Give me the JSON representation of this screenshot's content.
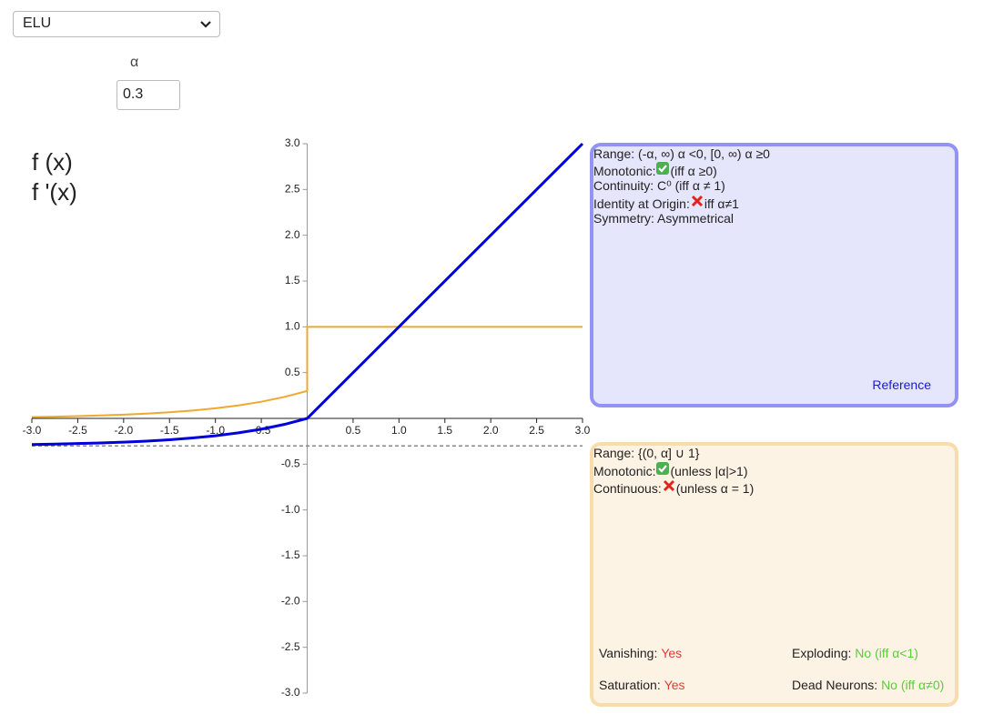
{
  "selector": {
    "value": "ELU"
  },
  "alpha": {
    "label": "α",
    "value": "0.3"
  },
  "chart_data": {
    "type": "line",
    "x": [
      -3,
      -2.75,
      -2.5,
      -2.25,
      -2,
      -1.75,
      -1.5,
      -1.25,
      -1,
      -0.75,
      -0.5,
      -0.25,
      0,
      0,
      3
    ],
    "series": [
      {
        "name": "f (x)",
        "color": "#0000dd",
        "legend_color": "#4f7cad",
        "values": [
          -0.285,
          -0.281,
          -0.275,
          -0.268,
          -0.259,
          -0.248,
          -0.233,
          -0.214,
          -0.19,
          -0.158,
          -0.118,
          -0.066,
          0,
          0,
          3
        ]
      },
      {
        "name": "f '(x)",
        "color": "#f0a830",
        "legend_color": "#f0a830",
        "values": [
          0.015,
          0.019,
          0.025,
          0.032,
          0.041,
          0.052,
          0.067,
          0.086,
          0.11,
          0.142,
          0.182,
          0.234,
          0.3,
          1,
          1
        ]
      }
    ],
    "asymptote_y": -0.3,
    "xlim": [
      -3,
      3
    ],
    "ylim": [
      -3,
      3
    ],
    "xticks": [
      {
        "value": -3,
        "label": "-3.0"
      },
      {
        "value": -2.5,
        "label": "-2.5"
      },
      {
        "value": -2,
        "label": "-2.0"
      },
      {
        "value": -1.5,
        "label": "-1.5"
      },
      {
        "value": -1,
        "label": "-1.0"
      },
      {
        "value": -0.5,
        "label": "-0.5"
      },
      {
        "value": 0.5,
        "label": "0.5"
      },
      {
        "value": 1,
        "label": "1.0"
      },
      {
        "value": 1.5,
        "label": "1.5"
      },
      {
        "value": 2,
        "label": "2.0"
      },
      {
        "value": 2.5,
        "label": "2.5"
      },
      {
        "value": 3,
        "label": "3.0"
      }
    ],
    "yticks": [
      {
        "value": 3,
        "label": "3.0"
      },
      {
        "value": 2.5,
        "label": "2.5"
      },
      {
        "value": 2,
        "label": "2.0"
      },
      {
        "value": 1.5,
        "label": "1.5"
      },
      {
        "value": 1,
        "label": "1.0"
      },
      {
        "value": 0.5,
        "label": "0.5"
      },
      {
        "value": -0.5,
        "label": "-0.5"
      },
      {
        "value": -1,
        "label": "-1.0"
      },
      {
        "value": -1.5,
        "label": "-1.5"
      },
      {
        "value": -2,
        "label": "-2.0"
      },
      {
        "value": -2.5,
        "label": "-2.5"
      },
      {
        "value": -3,
        "label": "-3.0"
      }
    ]
  },
  "function_panel": {
    "rows": [
      {
        "label": "Range: (-α, ∞) α <0, [0, ∞) α ≥0"
      },
      {
        "label": "Monotonic:",
        "icon": "check",
        "note": "(iff α ≥0)"
      },
      {
        "label": "Continuity: C⁰ (iff α ≠ 1)"
      },
      {
        "label": "Identity at Origin:",
        "icon": "cross",
        "note": "iff α≠1"
      },
      {
        "label": "Symmetry: Asymmetrical"
      }
    ],
    "link": "Reference"
  },
  "derivative_panel": {
    "rows": [
      {
        "label": "Range: {(0, α] ∪ 1}"
      },
      {
        "label": "Monotonic:",
        "icon": "check",
        "note": "(unless |α|>1)"
      },
      {
        "label": "Continuous:",
        "icon": "cross",
        "note": "(unless α = 1)"
      }
    ],
    "pairs": [
      [
        {
          "label": "Vanishing:",
          "value": "Yes",
          "color": "#e53935"
        },
        {
          "label": "Exploding:",
          "value": "No (iff α<1)",
          "color": "#5ccc3a"
        }
      ],
      [
        {
          "label": "Saturation:",
          "value": "Yes",
          "color": "#e53935"
        },
        {
          "label": "Dead Neurons:",
          "value": "No (iff α≠0)",
          "color": "#5ccc3a"
        }
      ]
    ]
  }
}
